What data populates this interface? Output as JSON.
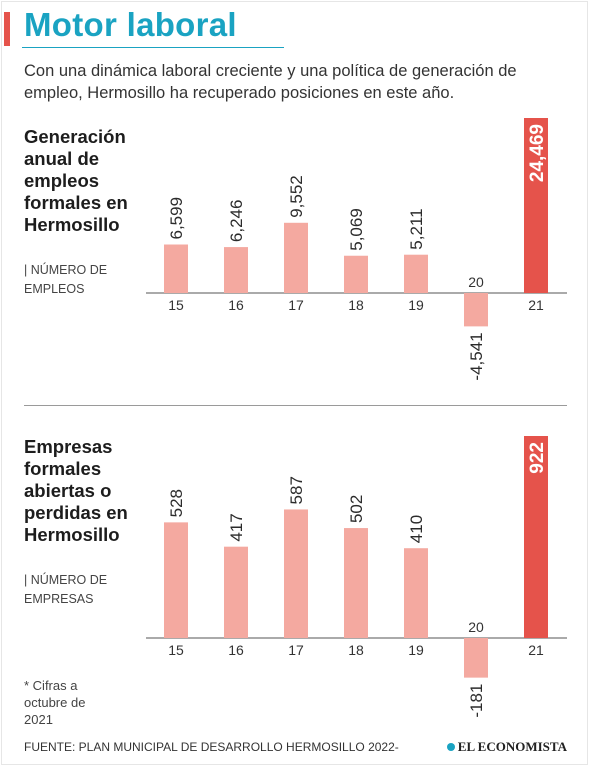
{
  "title": "Motor laboral",
  "subtitle": "Con una dinámica laboral creciente y una política de generación de empleo, Hermosillo ha recuperado posiciones en este año.",
  "colors": {
    "title": "#1aa3c2",
    "bar": "#f4a9a0",
    "bar_highlight": "#e5534b",
    "axis": "#555555"
  },
  "chart_data": [
    {
      "type": "bar",
      "title": "Generación anual de empleos formales en Hermosillo",
      "unit_label": "| NÚMERO DE EMPLEOS",
      "categories": [
        "15",
        "16",
        "17",
        "18",
        "19",
        "20",
        "21"
      ],
      "values": [
        6599,
        6246,
        9552,
        5069,
        5211,
        -4541,
        24469
      ],
      "value_labels": [
        "6,599",
        "6,246",
        "9,552",
        "5,069",
        "5,211",
        "-4,541",
        "24,469"
      ],
      "highlight_index": 6
    },
    {
      "type": "bar",
      "title": "Empresas formales abiertas o perdidas en Hermosillo",
      "unit_label": "| NÚMERO DE EMPRESAS",
      "categories": [
        "15",
        "16",
        "17",
        "18",
        "19",
        "20",
        "21"
      ],
      "values": [
        528,
        417,
        587,
        502,
        410,
        -181,
        922
      ],
      "value_labels": [
        "528",
        "417",
        "587",
        "502",
        "410",
        "-181",
        "922"
      ],
      "highlight_index": 6
    }
  ],
  "footnote": "* Cifras a octubre de 2021",
  "source": "FUENTE: PLAN MUNICIPAL DE DESARROLLO HERMOSILLO 2022-",
  "brand": "EL ECONOMISTA"
}
